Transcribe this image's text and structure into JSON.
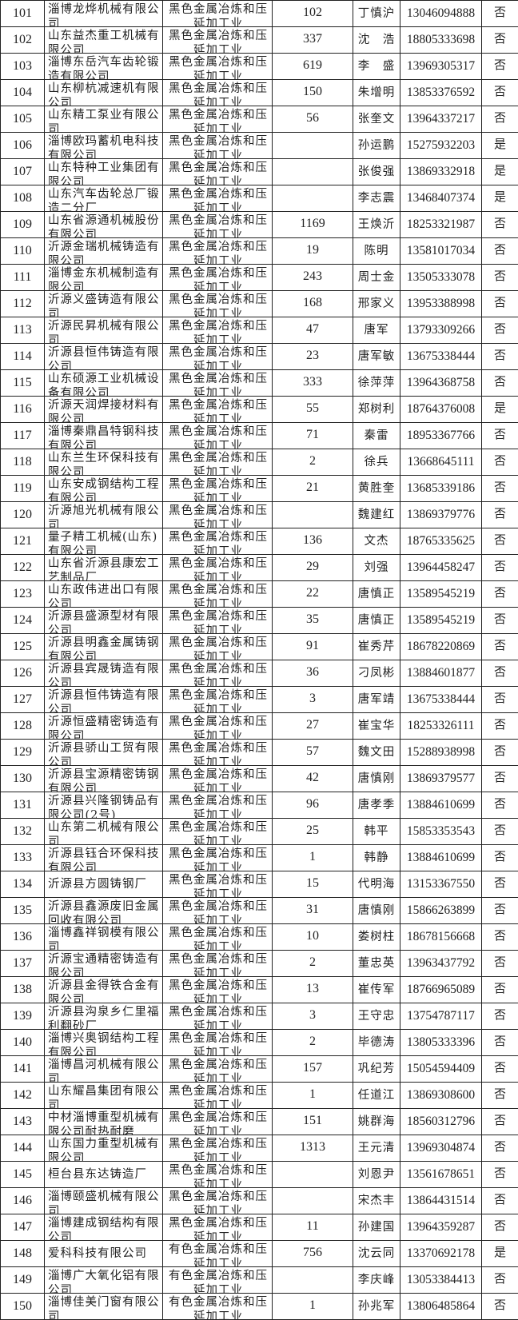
{
  "rows": [
    {
      "no": "101",
      "company": "淄博龙烨机械有限公司",
      "industry": "黑色金属冶炼和压延加工业",
      "count": "102",
      "person": "丁慎沪",
      "phone": "13046094888",
      "flag": "否"
    },
    {
      "no": "102",
      "company": "山东益杰重工机械有限公司",
      "industry": "黑色金属冶炼和压延加工业",
      "count": "337",
      "person": "沈　浩",
      "phone": "18805333698",
      "flag": "否"
    },
    {
      "no": "103",
      "company": "淄博东岳汽车齿轮锻造有限公司",
      "industry": "黑色金属冶炼和压延加工业",
      "count": "619",
      "person": "李　盛",
      "phone": "13969305317",
      "flag": "否"
    },
    {
      "no": "104",
      "company": "山东柳杭减速机有限公司",
      "industry": "黑色金属冶炼和压延加工业",
      "count": "150",
      "person": "朱增明",
      "phone": "13853376592",
      "flag": "否"
    },
    {
      "no": "105",
      "company": "山东精工泵业有限公司",
      "industry": "黑色金属冶炼和压延加工业",
      "count": "56",
      "person": "张奎文",
      "phone": "13964337217",
      "flag": "否"
    },
    {
      "no": "106",
      "company": "淄博欧玛蓄机电科技有限公司",
      "industry": "黑色金属冶炼和压延加工业",
      "count": "",
      "person": "孙运鹏",
      "phone": "15275932203",
      "flag": "是"
    },
    {
      "no": "107",
      "company": "山东特种工业集团有限公司",
      "industry": "黑色金属冶炼和压延加工业",
      "count": "",
      "person": "张俊强",
      "phone": "13869332918",
      "flag": "是"
    },
    {
      "no": "108",
      "company": "山东汽车齿轮总厂锻造二分厂",
      "industry": "黑色金属冶炼和压延加工业",
      "count": "",
      "person": "李志震",
      "phone": "13468407374",
      "flag": "是"
    },
    {
      "no": "109",
      "company": "山东省源通机械股份有限公司",
      "industry": "黑色金属冶炼和压延加工业",
      "count": "1169",
      "person": "王焕沂",
      "phone": "18253321987",
      "flag": "否"
    },
    {
      "no": "110",
      "company": "沂源金瑞机械铸造有限公司",
      "industry": "黑色金属冶炼和压延加工业",
      "count": "19",
      "person": "陈明",
      "phone": "13581017034",
      "flag": "否"
    },
    {
      "no": "111",
      "company": "淄博金东机械制造有限公司",
      "industry": "黑色金属冶炼和压延加工业",
      "count": "243",
      "person": "周士金",
      "phone": "13505333078",
      "flag": "否"
    },
    {
      "no": "112",
      "company": "沂源义盛铸造有限公司",
      "industry": "黑色金属冶炼和压延加工业",
      "count": "168",
      "person": "邢家义",
      "phone": "13953388998",
      "flag": "否"
    },
    {
      "no": "113",
      "company": "沂源民昇机械有限公司",
      "industry": "黑色金属冶炼和压延加工业",
      "count": "47",
      "person": "唐军",
      "phone": "13793309266",
      "flag": "否"
    },
    {
      "no": "114",
      "company": "沂源县恒伟铸造有限公司",
      "industry": "黑色金属冶炼和压延加工业",
      "count": "23",
      "person": "唐军敏",
      "phone": "13675338444",
      "flag": "否"
    },
    {
      "no": "115",
      "company": "山东硕源工业机械设备有限公司",
      "industry": "黑色金属冶炼和压延加工业",
      "count": "333",
      "person": "徐萍萍",
      "phone": "13964368758",
      "flag": "否"
    },
    {
      "no": "116",
      "company": "沂源天润焊接材料有限公司",
      "industry": "黑色金属冶炼和压延加工业",
      "count": "55",
      "person": "郑树利",
      "phone": "18764376008",
      "flag": "是"
    },
    {
      "no": "117",
      "company": "淄博秦鼎昌特钢科技有限公司",
      "industry": "黑色金属冶炼和压延加工业",
      "count": "71",
      "person": "秦雷",
      "phone": "18953367766",
      "flag": "否"
    },
    {
      "no": "118",
      "company": "山东兰生环保科技有限公司",
      "industry": "黑色金属冶炼和压延加工业",
      "count": "2",
      "person": "徐兵",
      "phone": "13668645111",
      "flag": "否"
    },
    {
      "no": "119",
      "company": "山东安成钢结构工程有限公司",
      "industry": "黑色金属冶炼和压延加工业",
      "count": "21",
      "person": "黄胜奎",
      "phone": "13685339186",
      "flag": "否"
    },
    {
      "no": "120",
      "company": "沂源旭光机械有限公司",
      "industry": "黑色金属冶炼和压延加工业",
      "count": "",
      "person": "魏建红",
      "phone": "13869379776",
      "flag": "否"
    },
    {
      "no": "121",
      "company": "量子精工机械(山东)有限公司",
      "industry": "黑色金属冶炼和压延加工业",
      "count": "136",
      "person": "文杰",
      "phone": "18765335625",
      "flag": "否"
    },
    {
      "no": "122",
      "company": "山东省沂源县康宏工艺制品厂",
      "industry": "黑色金属冶炼和压延加工业",
      "count": "29",
      "person": "刘强",
      "phone": "13964458247",
      "flag": "否"
    },
    {
      "no": "123",
      "company": "山东政伟进出口有限公司",
      "industry": "黑色金属冶炼和压延加工业",
      "count": "22",
      "person": "唐慎正",
      "phone": "13589545219",
      "flag": "否"
    },
    {
      "no": "124",
      "company": "沂源县盛源型材有限公司",
      "industry": "黑色金属冶炼和压延加工业",
      "count": "35",
      "person": "唐慎正",
      "phone": "13589545219",
      "flag": "否"
    },
    {
      "no": "125",
      "company": "沂源县明鑫金属铸钢有限公司",
      "industry": "黑色金属冶炼和压延加工业",
      "count": "91",
      "person": "崔秀芹",
      "phone": "18678220869",
      "flag": "否"
    },
    {
      "no": "126",
      "company": "沂源县宾晟铸造有限公司",
      "industry": "黑色金属冶炼和压延加工业",
      "count": "36",
      "person": "刁凤彬",
      "phone": "13884601877",
      "flag": "否"
    },
    {
      "no": "127",
      "company": "沂源县恒伟铸造有限公司",
      "industry": "黑色金属冶炼和压延加工业",
      "count": "3",
      "person": "唐军靖",
      "phone": "13675338444",
      "flag": "否"
    },
    {
      "no": "128",
      "company": "沂源恒盛精密铸造有限公司",
      "industry": "黑色金属冶炼和压延加工业",
      "count": "27",
      "person": "崔宝华",
      "phone": "18253326111",
      "flag": "否"
    },
    {
      "no": "129",
      "company": "沂源县骄山工贸有限公司",
      "industry": "黑色金属冶炼和压延加工业",
      "count": "57",
      "person": "魏文田",
      "phone": "15288938998",
      "flag": "否"
    },
    {
      "no": "130",
      "company": "沂源县宝源精密铸钢有限公司",
      "industry": "黑色金属冶炼和压延加工业",
      "count": "42",
      "person": "唐慎刚",
      "phone": "13869379577",
      "flag": "否"
    },
    {
      "no": "131",
      "company": "沂源县兴隆钢铸品有限公司(2号)",
      "industry": "黑色金属冶炼和压延加工业",
      "count": "96",
      "person": "唐孝季",
      "phone": "13884610699",
      "flag": "否"
    },
    {
      "no": "132",
      "company": "山东第二机械有限公司",
      "industry": "黑色金属冶炼和压延加工业",
      "count": "25",
      "person": "韩平",
      "phone": "15853353543",
      "flag": "否"
    },
    {
      "no": "133",
      "company": "沂源县钰合环保科技有限公司",
      "industry": "黑色金属冶炼和压延加工业",
      "count": "1",
      "person": "韩静",
      "phone": "13884610699",
      "flag": "否"
    },
    {
      "no": "134",
      "company": "沂源县方圆铸钢厂",
      "industry": "黑色金属冶炼和压延加工业",
      "count": "15",
      "person": "代明海",
      "phone": "13153367550",
      "flag": "否"
    },
    {
      "no": "135",
      "company": "沂源县鑫源废旧金属回收有限公司",
      "industry": "黑色金属冶炼和压延加工业",
      "count": "31",
      "person": "唐慎刚",
      "phone": "15866263899",
      "flag": "否"
    },
    {
      "no": "136",
      "company": "淄博鑫祥钢模有限公司",
      "industry": "黑色金属冶炼和压延加工业",
      "count": "10",
      "person": "娄树柱",
      "phone": "18678156668",
      "flag": "否"
    },
    {
      "no": "137",
      "company": "沂源宝通精密铸造有限公司",
      "industry": "黑色金属冶炼和压延加工业",
      "count": "2",
      "person": "董忠英",
      "phone": "13963437792",
      "flag": "否"
    },
    {
      "no": "138",
      "company": "沂源县金得铁合金有限公司",
      "industry": "黑色金属冶炼和压延加工业",
      "count": "13",
      "person": "崔传军",
      "phone": "18766965089",
      "flag": "否"
    },
    {
      "no": "139",
      "company": "沂源县沟泉乡仁里福利翻砂厂",
      "industry": "黑色金属冶炼和压延加工业",
      "count": "3",
      "person": "王守忠",
      "phone": "13754787117",
      "flag": "否"
    },
    {
      "no": "140",
      "company": "淄博兴奥钢结构工程有限公司",
      "industry": "黑色金属冶炼和压延加工业",
      "count": "2",
      "person": "毕德涛",
      "phone": "13805333396",
      "flag": "否"
    },
    {
      "no": "141",
      "company": "淄博昌河机械有限公司",
      "industry": "黑色金属冶炼和压延加工业",
      "count": "157",
      "person": "巩纪芳",
      "phone": "15054594409",
      "flag": "否"
    },
    {
      "no": "142",
      "company": "山东耀昌集团有限公司",
      "industry": "黑色金属冶炼和压延加工业",
      "count": "1",
      "person": "任道江",
      "phone": "13869308600",
      "flag": "否"
    },
    {
      "no": "143",
      "company": "中材淄博重型机械有限公司耐热耐磨",
      "industry": "黑色金属冶炼和压延加工业",
      "count": "151",
      "person": "姚群海",
      "phone": "18560312796",
      "flag": "否"
    },
    {
      "no": "144",
      "company": "山东国力重型机械有限公司",
      "industry": "黑色金属冶炼和压延加工业",
      "count": "1313",
      "person": "王元清",
      "phone": "13969304874",
      "flag": "否"
    },
    {
      "no": "145",
      "company": "桓台县东达铸造厂",
      "industry": "黑色金属冶炼和压延加工业",
      "count": "",
      "person": "刘恩尹",
      "phone": "13561678651",
      "flag": "否"
    },
    {
      "no": "146",
      "company": "淄博颐盛机械有限公司",
      "industry": "黑色金属冶炼和压延加工业",
      "count": "",
      "person": "宋杰丰",
      "phone": "13864431514",
      "flag": "否"
    },
    {
      "no": "147",
      "company": "淄博建成钢结构有限公司",
      "industry": "黑色金属冶炼和压延加工业",
      "count": "11",
      "person": "孙建国",
      "phone": "13964359287",
      "flag": "否"
    },
    {
      "no": "148",
      "company": "爱科科技有限公司",
      "industry": "有色金属冶炼和压延加工业",
      "count": "756",
      "person": "沈云同",
      "phone": "13370692178",
      "flag": "是"
    },
    {
      "no": "149",
      "company": "淄博广大氧化铝有限公司",
      "industry": "有色金属冶炼和压延加工业",
      "count": "",
      "person": "李庆峰",
      "phone": "13053384413",
      "flag": "否"
    },
    {
      "no": "150",
      "company": "淄博佳美门窗有限公司",
      "industry": "有色金属冶炼和压延加工业",
      "count": "1",
      "person": "孙兆军",
      "phone": "13806485864",
      "flag": "否"
    }
  ]
}
